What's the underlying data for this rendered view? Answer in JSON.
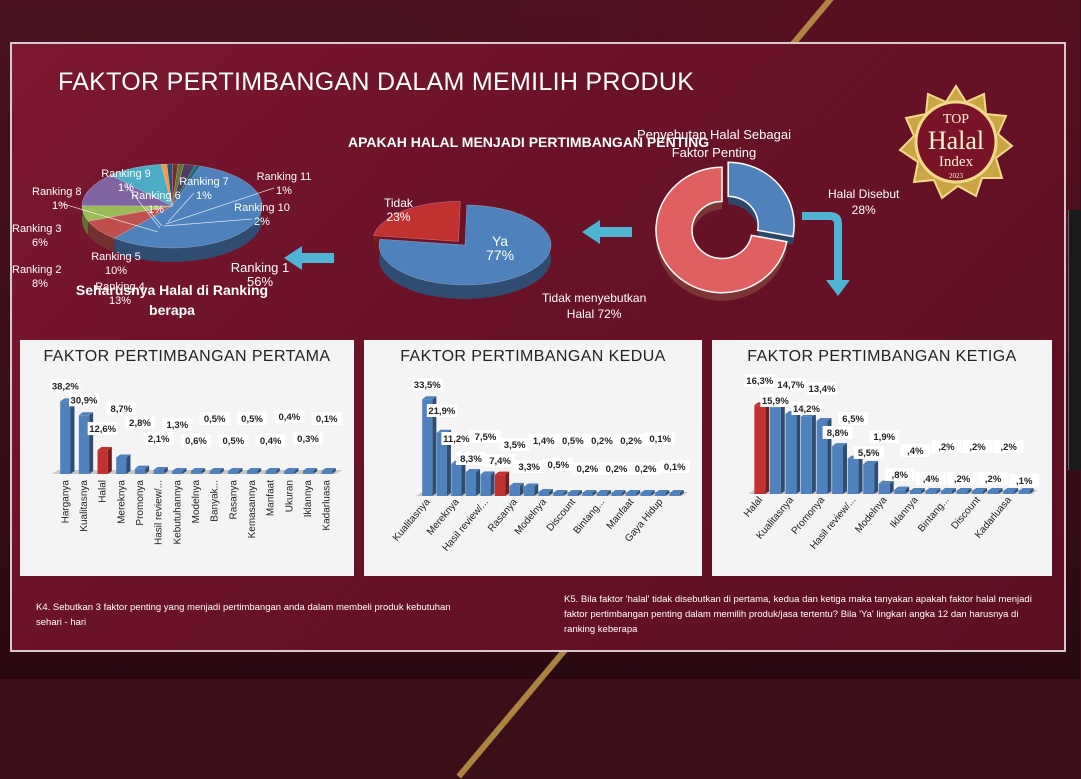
{
  "title": "FAKTOR PERTIMBANGAN  DALAM MEMILIH PRODUK",
  "badge": {
    "top": "TOP",
    "halal": "Halal",
    "index": "Index",
    "year": "2023"
  },
  "colors": {
    "accent_blue": "#4f81bd",
    "accent_red": "#c0312f",
    "slide_bg": "#6a1228",
    "arrow": "#4fb3d4"
  },
  "pie_ranking": {
    "caption": "Seharusnya Halal di Ranking berapa",
    "labels": [
      {
        "text": "Ranking 1\n56%"
      },
      {
        "text": "Ranking 2\n8%"
      },
      {
        "text": "Ranking 3\n6%"
      },
      {
        "text": "Ranking 4\n13%"
      },
      {
        "text": "Ranking 5\n10%"
      },
      {
        "text": "Ranking 6\n1%"
      },
      {
        "text": "Ranking 7\n1%"
      },
      {
        "text": "Ranking 8\n1%"
      },
      {
        "text": "Ranking 9\n1%"
      },
      {
        "text": "Ranking 10\n2%"
      },
      {
        "text": "Ranking 11\n1%"
      }
    ]
  },
  "pie_halal": {
    "title": "APAKAH HALAL MENJADI PERTIMBANGAN PENTING",
    "tidak": "Tidak\n23%",
    "ya": "Ya\n77%"
  },
  "donut": {
    "title": "Penyebutan Halal Sebagai Faktor Penting",
    "disebut": "Halal Disebut\n28%",
    "tidak": "Tidak menyebutkan\nHalal 72%"
  },
  "chart_data": [
    {
      "type": "pie",
      "categories": [
        "Ranking 1",
        "Ranking 2",
        "Ranking 3",
        "Ranking 4",
        "Ranking 5",
        "Ranking 6",
        "Ranking 7",
        "Ranking 8",
        "Ranking 9",
        "Ranking 10",
        "Ranking 11"
      ],
      "values": [
        56,
        8,
        6,
        13,
        10,
        1,
        1,
        1,
        1,
        2,
        1
      ],
      "title": "",
      "colors": [
        "#4f81bd",
        "#c0504d",
        "#9bbb59",
        "#8064a2",
        "#4bacc6",
        "#f79646",
        "#2c4d75",
        "#772c2a",
        "#5f7530",
        "#4d3b62",
        "#276a7c"
      ]
    },
    {
      "type": "pie",
      "categories": [
        "Ya",
        "Tidak"
      ],
      "values": [
        77,
        23
      ],
      "title": "APAKAH HALAL MENJADI PERTIMBANGAN PENTING",
      "colors": [
        "#4f81bd",
        "#c0312f"
      ]
    },
    {
      "type": "pie",
      "categories": [
        "Halal Disebut",
        "Tidak menyebutkan Halal"
      ],
      "values": [
        28,
        72
      ],
      "title": "Penyebutan Halal Sebagai Faktor Penting",
      "colors": [
        "#4f81bd",
        "#e06060"
      ]
    },
    {
      "type": "bar",
      "title": "FAKTOR PERTIMBANGAN PERTAMA",
      "categories": [
        "Harganya",
        "Kualitasnya",
        "Halal",
        "Mereknya",
        "Promonya",
        "Hasil review/...",
        "Kebutuhannya",
        "Modelnya",
        "Banyak...",
        "Rasanya",
        "Kemasannya",
        "Manfaat",
        "Ukuran",
        "Iklannya",
        "Kadarluasa"
      ],
      "values": [
        38.2,
        30.9,
        12.6,
        8.7,
        2.8,
        2.1,
        1.3,
        0.6,
        0.5,
        0.5,
        0.5,
        0.4,
        0.4,
        0.3,
        0.1
      ],
      "value_labels": [
        "38,2%",
        "30,9%",
        "12,6%",
        "8,7%",
        "2,8%",
        "2,1%",
        "1,3%",
        "0,6%",
        "0,5%",
        "0,5%",
        "0,5%",
        "0,4%",
        "0,4%",
        "0,3%",
        "0,1%"
      ],
      "highlight_index": 2
    },
    {
      "type": "bar",
      "title": "FAKTOR PERTIMBANGAN KEDUA",
      "categories": [
        "Kualitasnya",
        "",
        "Mereknya",
        "",
        "Hasil review/...",
        "",
        "Rasanya",
        "",
        "Modelnya",
        "",
        "Discount",
        "",
        "Bintang...",
        "",
        "Manfaat",
        "",
        "Gaya Hidup",
        ""
      ],
      "values": [
        33.5,
        21.9,
        11.2,
        8.3,
        7.5,
        7.4,
        3.5,
        3.3,
        1.4,
        0.5,
        0.5,
        0.2,
        0.2,
        0.2,
        0.2,
        0.2,
        0.1,
        0.1
      ],
      "value_labels": [
        "33,5%",
        "21,9%",
        "11,2%",
        "8,3%",
        "7,5%",
        "7,4%",
        "3,5%",
        "3,3%",
        "1,4%",
        "0,5%",
        "0,5%",
        "0,2%",
        "0,2%",
        "0,2%",
        "0,2%",
        "0,2%",
        "0,1%",
        "0,1%"
      ],
      "highlight_index": 5
    },
    {
      "type": "bar",
      "title": "FAKTOR PERTIMBANGAN KETIGA",
      "categories": [
        "Halal",
        "",
        "Kualitasnya",
        "",
        "Promonya",
        "",
        "Hasil review/...",
        "",
        "Modelnya",
        "",
        "Iklannya",
        "",
        "Bintang...",
        "",
        "Discount",
        "",
        "Kadarluasa",
        ""
      ],
      "values": [
        16.3,
        15.9,
        14.7,
        14.2,
        13.4,
        8.8,
        6.5,
        5.5,
        1.9,
        0.8,
        0.4,
        0.4,
        0.2,
        0.2,
        0.2,
        0.2,
        0.2,
        0.1
      ],
      "value_labels": [
        "16,3%",
        "15,9%",
        "14,7%",
        "14,2%",
        "13,4%",
        "8,8%",
        "6,5%",
        "5,5%",
        "1,9%",
        ",8%",
        ",4%",
        ",4%",
        ",2%",
        ",2%",
        ",2%",
        ",2%",
        ",2%",
        ",1%"
      ],
      "highlight_index": 0
    }
  ],
  "notes": {
    "k4": "K4. Sebutkan 3 faktor penting yang menjadi pertimbangan anda dalam membeli produk kebutuhan sehari - hari",
    "k5": "K5. Bila faktor 'halal' tidak disebutkan di pertama, kedua dan ketiga maka tanyakan apakah faktor halal menjadi faktor pertimbangan penting dalam memilih produk/jasa tertentu? Bila 'Ya' lingkari angka 12 dan harusnya di ranking keberapa"
  }
}
